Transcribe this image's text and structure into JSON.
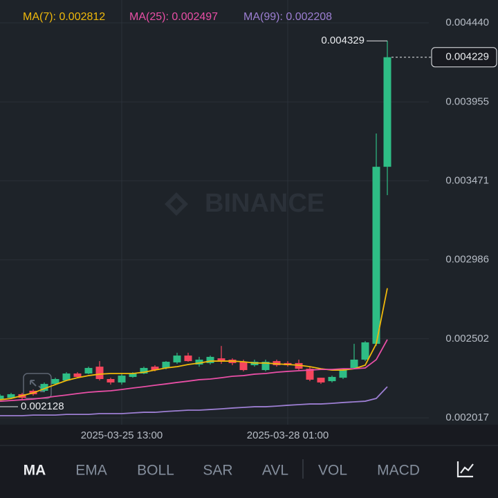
{
  "chart_data": {
    "type": "candlestick",
    "categories": [
      null,
      null,
      null,
      null,
      null,
      null,
      null,
      null,
      null,
      null,
      null,
      "2025-03-25 13:00",
      null,
      null,
      null,
      null,
      null,
      null,
      null,
      null,
      null,
      null,
      null,
      null,
      null,
      null,
      "2025-03-28 01:00",
      null,
      null,
      null,
      null,
      null,
      null,
      null,
      null,
      null
    ],
    "open": [
      0.002128,
      0.00214,
      0.002162,
      0.002183,
      0.002183,
      0.002225,
      0.002246,
      0.002289,
      0.002289,
      0.002331,
      0.002255,
      0.002234,
      0.002268,
      0.002289,
      0.002331,
      0.002323,
      0.002357,
      0.002399,
      0.002344,
      0.002353,
      0.002382,
      0.002374,
      0.002361,
      0.00234,
      0.00231,
      0.002365,
      0.002353,
      0.002353,
      0.002318,
      0.002263,
      0.002242,
      0.002263,
      0.002323,
      0.002374,
      0.002471,
      0.003557
    ],
    "high": [
      0.002162,
      0.00217,
      0.00217,
      0.002191,
      0.002234,
      0.002263,
      0.002297,
      0.002297,
      0.002331,
      0.002365,
      0.002263,
      0.002289,
      0.002297,
      0.002331,
      0.00234,
      0.002365,
      0.002416,
      0.002416,
      0.002391,
      0.002399,
      0.002458,
      0.002382,
      0.002374,
      0.002374,
      0.002374,
      0.002374,
      0.002365,
      0.002374,
      0.002331,
      0.002263,
      0.002276,
      0.002318,
      0.002471,
      0.002488,
      0.003761,
      0.004329
    ],
    "low": [
      0.002128,
      0.002132,
      0.002132,
      0.002153,
      0.002174,
      0.002221,
      0.002242,
      0.002263,
      0.002285,
      0.002246,
      0.002221,
      0.002221,
      0.002263,
      0.002285,
      0.002302,
      0.002314,
      0.002348,
      0.002361,
      0.002331,
      0.002344,
      0.002348,
      0.00234,
      0.002302,
      0.002331,
      0.002302,
      0.002331,
      0.002331,
      0.00231,
      0.002242,
      0.002225,
      0.002234,
      0.002255,
      0.002318,
      0.002365,
      0.002458,
      0.003383
    ],
    "close": [
      0.002153,
      0.002162,
      0.00214,
      0.002162,
      0.002225,
      0.002255,
      0.002289,
      0.002268,
      0.002323,
      0.002255,
      0.002234,
      0.002276,
      0.002289,
      0.002323,
      0.00231,
      0.002361,
      0.002399,
      0.002365,
      0.002374,
      0.002391,
      0.002361,
      0.002353,
      0.00231,
      0.002361,
      0.002361,
      0.00234,
      0.00234,
      0.002318,
      0.002251,
      0.002234,
      0.002268,
      0.00231,
      0.002374,
      0.00248,
      0.003557,
      0.004229
    ],
    "up_color": "#2ebd85",
    "down_color": "#f6465d",
    "series": [
      {
        "name": "MA(7): 0.002812",
        "color": "#f0b90b",
        "values": [
          0.002128,
          0.002136,
          0.002153,
          0.00217,
          0.002196,
          0.002221,
          0.002246,
          0.002263,
          0.002276,
          0.002285,
          0.002289,
          0.002289,
          0.002289,
          0.002297,
          0.00231,
          0.002323,
          0.002331,
          0.002344,
          0.002353,
          0.002365,
          0.002365,
          0.002365,
          0.002361,
          0.002353,
          0.002353,
          0.002348,
          0.002344,
          0.00234,
          0.002331,
          0.002318,
          0.00231,
          0.00231,
          0.002318,
          0.00234,
          0.002471,
          0.002812
        ]
      },
      {
        "name": "MA(25): 0.002497",
        "color": "#e94fa6",
        "values": [
          0.002119,
          0.002123,
          0.002128,
          0.002132,
          0.00214,
          0.002149,
          0.002157,
          0.002166,
          0.002174,
          0.002179,
          0.002183,
          0.002191,
          0.0022,
          0.002208,
          0.002217,
          0.002225,
          0.002234,
          0.002242,
          0.002251,
          0.002255,
          0.002263,
          0.002272,
          0.002276,
          0.002285,
          0.002289,
          0.002297,
          0.002302,
          0.002306,
          0.00231,
          0.002314,
          0.002314,
          0.002318,
          0.002318,
          0.002323,
          0.002374,
          0.002497
        ]
      },
      {
        "name": "MA(99): 0.002208",
        "color": "#9d7fd3",
        "values": [
          0.00203,
          0.00203,
          0.00203,
          0.002034,
          0.002034,
          0.002034,
          0.002038,
          0.002038,
          0.002038,
          0.002043,
          0.002043,
          0.002043,
          0.002047,
          0.002051,
          0.002051,
          0.002056,
          0.00206,
          0.002064,
          0.002064,
          0.002068,
          0.002072,
          0.002077,
          0.002081,
          0.002085,
          0.002085,
          0.002089,
          0.002094,
          0.002098,
          0.002102,
          0.002102,
          0.002106,
          0.002111,
          0.002115,
          0.002119,
          0.002136,
          0.002208
        ]
      }
    ],
    "ylim": [
      0.001975,
      0.00458
    ],
    "yticks": [
      {
        "value": 0.00444,
        "label": "0.004440"
      },
      0.003955,
      0.003471,
      0.002986,
      0.002502,
      0.002017
    ],
    "grid": true,
    "watermark": "BINANCE"
  },
  "toolbar": {
    "tabs": [
      "MA",
      "EMA",
      "BOLL",
      "SAR",
      "AVL",
      "VOL",
      "MACD"
    ],
    "active": 0
  }
}
